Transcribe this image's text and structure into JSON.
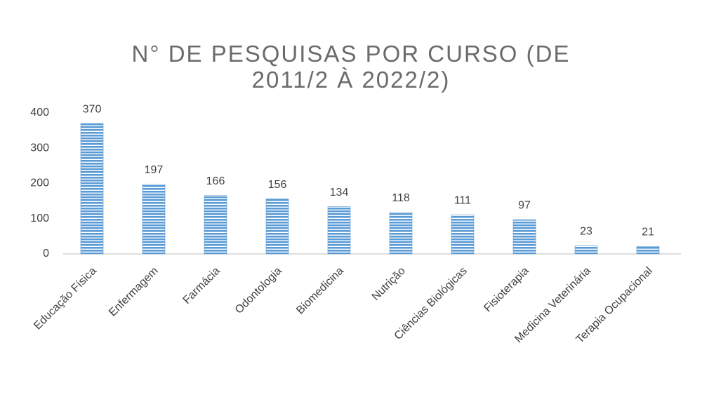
{
  "chart_data": {
    "type": "bar",
    "title": "N° DE PESQUISAS POR CURSO (DE 2011/2 À 2022/2)",
    "categories": [
      "Educação Física",
      "Enfermagem",
      "Farmácia",
      "Odontologia",
      "Biomedicina",
      "Nutrição",
      "Ciências Biológicas",
      "Fisioterapia",
      "Medicina Veterinária",
      "Terapia Ocupacional"
    ],
    "values": [
      370,
      197,
      166,
      156,
      134,
      118,
      111,
      97,
      23,
      21
    ],
    "color": "#5b9bd5",
    "ylim": [
      0,
      400
    ],
    "yticks": [
      0,
      100,
      200,
      300,
      400
    ],
    "grid": false
  }
}
